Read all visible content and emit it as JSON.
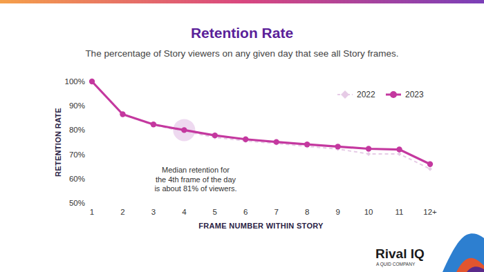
{
  "chart_data": {
    "type": "line",
    "title": "Retention Rate",
    "subtitle": "The percentage of Story viewers on any given day that see all Story frames.",
    "x_label": "FRAME NUMBER WITHIN STORY",
    "y_label": "RETENTION RATE",
    "categories": [
      "1",
      "2",
      "3",
      "4",
      "5",
      "6",
      "7",
      "8",
      "9",
      "10",
      "11",
      "12+"
    ],
    "series": [
      {
        "name": "2022",
        "color": "#e6cbe6",
        "line_style": "dashed",
        "marker": "diamond",
        "values": [
          100,
          86.5,
          82,
          79.5,
          77,
          75.5,
          74.5,
          73.3,
          72.2,
          70.2,
          70.2,
          64
        ]
      },
      {
        "name": "2023",
        "color": "#c4389f",
        "line_style": "solid",
        "marker": "circle",
        "values": [
          100,
          86.5,
          82.3,
          80,
          77.8,
          76.2,
          75.1,
          74.1,
          73.2,
          72.3,
          72,
          66
        ]
      }
    ],
    "ylim": [
      50,
      100
    ],
    "yticks": [
      {
        "value": 50,
        "label": "50%"
      },
      {
        "value": 60,
        "label": "60%"
      },
      {
        "value": 70,
        "label": "70%"
      },
      {
        "value": 80,
        "label": "80%"
      },
      {
        "value": 90,
        "label": "90%"
      },
      {
        "value": 100,
        "label": "100%"
      }
    ],
    "grid": false,
    "legend": "upper right",
    "annotations": [
      "Median retention for",
      "the 4th frame of the day",
      "is about 81% of viewers."
    ],
    "brand": {
      "name": "Rival IQ",
      "tagline": "A QUID COMPANY"
    }
  }
}
